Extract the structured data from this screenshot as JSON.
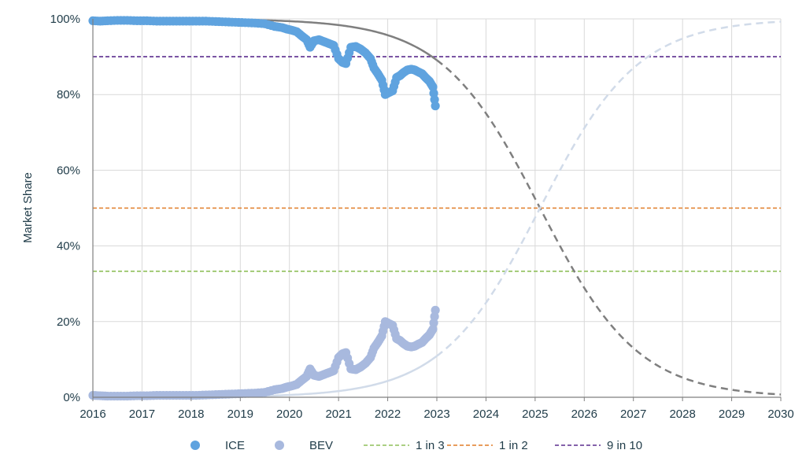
{
  "chart_data": {
    "type": "scatter",
    "title": "",
    "xlabel": "",
    "ylabel": "Market Share",
    "xlim": [
      2016,
      2030
    ],
    "ylim": [
      0,
      100
    ],
    "x_ticks": [
      2016,
      2017,
      2018,
      2019,
      2020,
      2021,
      2022,
      2023,
      2024,
      2025,
      2026,
      2027,
      2028,
      2029,
      2030
    ],
    "x_tick_labels": [
      "2016",
      "2017",
      "2018",
      "2019",
      "2020",
      "2021",
      "2022",
      "2023",
      "2024",
      "2025",
      "2026",
      "2027",
      "2028",
      "2029",
      "2030"
    ],
    "y_ticks": [
      0,
      20,
      40,
      60,
      80,
      100
    ],
    "y_tick_labels": [
      "0%",
      "20%",
      "40%",
      "60%",
      "80%",
      "100%"
    ],
    "grid": true,
    "legend_position": "bottom",
    "colors": {
      "ice": "#5fa3df",
      "bev": "#a8b9de",
      "ice_fit": "#7f7f7f",
      "bev_fit": "#d1dbe9",
      "one_in_three": "#8fbf5a",
      "one_in_two": "#e07b27",
      "nine_in_ten": "#5b2d8e",
      "grid": "#d9d9d9",
      "axis": "#7f7f7f"
    },
    "series": [
      {
        "name": "ICE",
        "kind": "scatter",
        "points": [
          [
            2016.0,
            99.5
          ],
          [
            2016.15,
            99.4
          ],
          [
            2016.3,
            99.5
          ],
          [
            2016.5,
            99.6
          ],
          [
            2016.7,
            99.6
          ],
          [
            2016.9,
            99.5
          ],
          [
            2017.1,
            99.5
          ],
          [
            2017.3,
            99.4
          ],
          [
            2017.5,
            99.4
          ],
          [
            2017.7,
            99.4
          ],
          [
            2017.9,
            99.4
          ],
          [
            2018.1,
            99.4
          ],
          [
            2018.3,
            99.4
          ],
          [
            2018.5,
            99.3
          ],
          [
            2018.7,
            99.2
          ],
          [
            2018.9,
            99.1
          ],
          [
            2019.1,
            99.0
          ],
          [
            2019.3,
            98.9
          ],
          [
            2019.5,
            98.7
          ],
          [
            2019.7,
            98.0
          ],
          [
            2019.85,
            97.7
          ],
          [
            2019.95,
            97.3
          ],
          [
            2020.05,
            97.0
          ],
          [
            2020.15,
            96.6
          ],
          [
            2020.25,
            95.5
          ],
          [
            2020.35,
            94.5
          ],
          [
            2020.42,
            92.5
          ],
          [
            2020.5,
            94.2
          ],
          [
            2020.6,
            94.5
          ],
          [
            2020.7,
            94.0
          ],
          [
            2020.8,
            93.5
          ],
          [
            2020.9,
            93.0
          ],
          [
            2021.0,
            89.5
          ],
          [
            2021.08,
            88.5
          ],
          [
            2021.15,
            88.2
          ],
          [
            2021.25,
            92.5
          ],
          [
            2021.35,
            92.7
          ],
          [
            2021.45,
            92.0
          ],
          [
            2021.55,
            91.0
          ],
          [
            2021.65,
            89.5
          ],
          [
            2021.72,
            87.0
          ],
          [
            2021.8,
            85.5
          ],
          [
            2021.88,
            83.8
          ],
          [
            2021.95,
            80.0
          ],
          [
            2022.02,
            80.5
          ],
          [
            2022.1,
            81.0
          ],
          [
            2022.18,
            84.5
          ],
          [
            2022.25,
            85.0
          ],
          [
            2022.32,
            85.8
          ],
          [
            2022.4,
            86.5
          ],
          [
            2022.48,
            86.7
          ],
          [
            2022.55,
            86.5
          ],
          [
            2022.62,
            86.0
          ],
          [
            2022.7,
            85.5
          ],
          [
            2022.77,
            84.5
          ],
          [
            2022.85,
            83.5
          ],
          [
            2022.92,
            82.0
          ],
          [
            2022.97,
            77.0
          ]
        ]
      },
      {
        "name": "BEV",
        "kind": "scatter",
        "points": [
          [
            2016.0,
            0.5
          ],
          [
            2016.15,
            0.4
          ],
          [
            2016.3,
            0.3
          ],
          [
            2016.5,
            0.3
          ],
          [
            2016.7,
            0.3
          ],
          [
            2016.9,
            0.4
          ],
          [
            2017.1,
            0.4
          ],
          [
            2017.3,
            0.5
          ],
          [
            2017.5,
            0.5
          ],
          [
            2017.7,
            0.5
          ],
          [
            2017.9,
            0.5
          ],
          [
            2018.1,
            0.5
          ],
          [
            2018.3,
            0.6
          ],
          [
            2018.5,
            0.7
          ],
          [
            2018.7,
            0.8
          ],
          [
            2018.9,
            0.9
          ],
          [
            2019.1,
            1.0
          ],
          [
            2019.3,
            1.1
          ],
          [
            2019.5,
            1.3
          ],
          [
            2019.7,
            2.0
          ],
          [
            2019.85,
            2.3
          ],
          [
            2019.95,
            2.7
          ],
          [
            2020.05,
            3.0
          ],
          [
            2020.15,
            3.4
          ],
          [
            2020.25,
            4.5
          ],
          [
            2020.35,
            5.5
          ],
          [
            2020.42,
            7.5
          ],
          [
            2020.5,
            5.8
          ],
          [
            2020.6,
            5.5
          ],
          [
            2020.7,
            6.0
          ],
          [
            2020.8,
            6.5
          ],
          [
            2020.9,
            7.0
          ],
          [
            2021.0,
            10.5
          ],
          [
            2021.08,
            11.5
          ],
          [
            2021.15,
            11.8
          ],
          [
            2021.25,
            7.5
          ],
          [
            2021.35,
            7.3
          ],
          [
            2021.45,
            8.0
          ],
          [
            2021.55,
            9.0
          ],
          [
            2021.65,
            10.5
          ],
          [
            2021.72,
            13.0
          ],
          [
            2021.8,
            14.5
          ],
          [
            2021.88,
            16.2
          ],
          [
            2021.95,
            20.0
          ],
          [
            2022.02,
            19.5
          ],
          [
            2022.1,
            19.0
          ],
          [
            2022.18,
            15.5
          ],
          [
            2022.25,
            15.0
          ],
          [
            2022.32,
            14.2
          ],
          [
            2022.4,
            13.5
          ],
          [
            2022.48,
            13.3
          ],
          [
            2022.55,
            13.5
          ],
          [
            2022.62,
            14.0
          ],
          [
            2022.7,
            14.5
          ],
          [
            2022.77,
            15.5
          ],
          [
            2022.85,
            16.5
          ],
          [
            2022.92,
            18.0
          ],
          [
            2022.97,
            23.0
          ]
        ]
      },
      {
        "name": "ICE fit",
        "kind": "logistic",
        "center": 2025.1,
        "rate": 1.0,
        "direction": "decreasing",
        "solid_until": 2023,
        "x_range": [
          2016,
          2030
        ]
      },
      {
        "name": "BEV fit",
        "kind": "logistic",
        "center": 2025.1,
        "rate": 1.0,
        "direction": "increasing",
        "solid_until": 2023,
        "x_range": [
          2016,
          2030
        ]
      },
      {
        "name": "1 in 3",
        "kind": "hline",
        "value": 33.3
      },
      {
        "name": "1 in 2",
        "kind": "hline",
        "value": 50
      },
      {
        "name": "9 in 10",
        "kind": "hline",
        "value": 90
      }
    ],
    "legend": [
      {
        "label": "ICE",
        "marker": "dot",
        "series": "ICE"
      },
      {
        "label": "BEV",
        "marker": "dot",
        "series": "BEV"
      },
      {
        "label": "1 in 3",
        "marker": "dash",
        "series": "1 in 3"
      },
      {
        "label": "1 in 2",
        "marker": "dash",
        "series": "1 in 2"
      },
      {
        "label": "9 in 10",
        "marker": "dash",
        "series": "9 in 10"
      }
    ]
  }
}
